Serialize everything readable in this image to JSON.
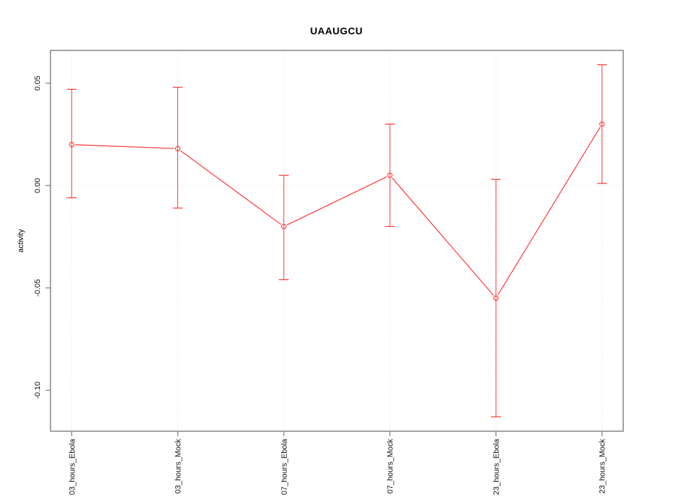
{
  "chart_data": {
    "type": "line",
    "title": "UAAUGCU",
    "xlabel": "",
    "ylabel": "activity",
    "categories": [
      "03_hours_Ebola",
      "03_hours_Mock",
      "07_hours_Ebola",
      "07_hours_Mock",
      "23_hours_Ebola",
      "23_hours_Mock"
    ],
    "series": [
      {
        "name": "activity",
        "values": [
          0.02,
          0.018,
          -0.02,
          0.005,
          -0.055,
          0.03
        ],
        "err_high": [
          0.047,
          0.048,
          0.005,
          0.03,
          0.003,
          0.059
        ],
        "err_low": [
          -0.006,
          -0.011,
          -0.046,
          -0.02,
          -0.113,
          0.001
        ]
      }
    ],
    "yticks": [
      {
        "value": 0.05,
        "label": "0.05"
      },
      {
        "value": 0.0,
        "label": "0.00"
      },
      {
        "value": -0.05,
        "label": "-0.05"
      },
      {
        "value": -0.1,
        "label": "-0.10"
      }
    ],
    "ylim": [
      -0.12,
      0.066
    ],
    "grid": {
      "vertical_at_categories": true,
      "horizontal_at_zero": true,
      "line_style": "dotted"
    },
    "legend_position": "none",
    "marker": "open-circle",
    "colors": {
      "series": "#ff3333",
      "grid": "#d9d9d9",
      "box": "#7a7a7a",
      "text": "#111111",
      "background": "#ffffff"
    }
  }
}
